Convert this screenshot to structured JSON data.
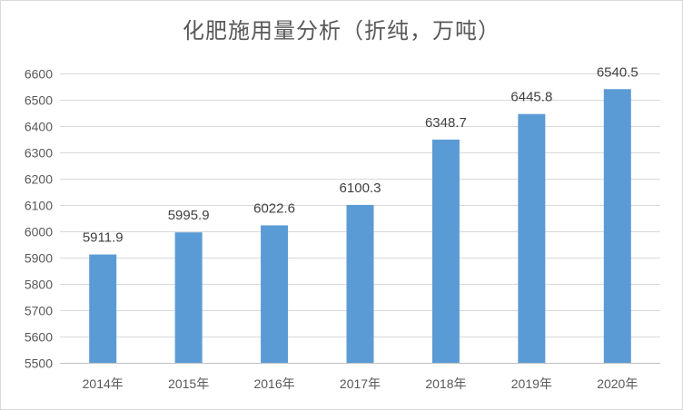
{
  "chart_data": {
    "type": "bar",
    "title": "化肥施用量分析（折纯，万吨）",
    "categories": [
      "2014年",
      "2015年",
      "2016年",
      "2017年",
      "2018年",
      "2019年",
      "2020年"
    ],
    "values": [
      5911.9,
      5995.9,
      6022.6,
      6100.3,
      6348.7,
      6445.8,
      6540.5
    ],
    "data_labels": [
      "5911.9",
      "5995.9",
      "6022.6",
      "6100.3",
      "6348.7",
      "6445.8",
      "6540.5"
    ],
    "xlabel": "",
    "ylabel": "",
    "ylim": [
      5500,
      6600
    ],
    "yticks": [
      "5500",
      "5600",
      "5700",
      "5800",
      "5900",
      "6000",
      "6100",
      "6200",
      "6300",
      "6400",
      "6500",
      "6600"
    ],
    "grid": true,
    "legend": "none",
    "bar_color": "#5B9BD5"
  }
}
